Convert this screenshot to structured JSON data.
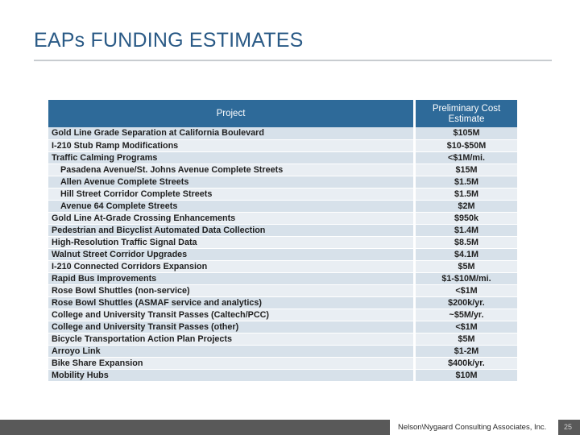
{
  "slide": {
    "title": "EAPs FUNDING ESTIMATES"
  },
  "table": {
    "headers": {
      "project": "Project",
      "cost": "Preliminary Cost Estimate"
    },
    "rows": [
      {
        "project": "Gold Line Grade Separation at California Boulevard",
        "cost": "$105M",
        "indent": false
      },
      {
        "project": "I-210 Stub Ramp Modifications",
        "cost": "$10-$50M",
        "indent": false
      },
      {
        "project": "Traffic Calming Programs",
        "cost": "<$1M/mi.",
        "indent": false
      },
      {
        "project": "Pasadena Avenue/St. Johns Avenue Complete Streets",
        "cost": "$15M",
        "indent": true
      },
      {
        "project": "Allen Avenue Complete Streets",
        "cost": "$1.5M",
        "indent": true
      },
      {
        "project": "Hill Street Corridor Complete Streets",
        "cost": "$1.5M",
        "indent": true
      },
      {
        "project": "Avenue 64 Complete Streets",
        "cost": "$2M",
        "indent": true
      },
      {
        "project": "Gold Line At-Grade Crossing Enhancements",
        "cost": "$950k",
        "indent": false
      },
      {
        "project": "Pedestrian and Bicyclist Automated Data Collection",
        "cost": "$1.4M",
        "indent": false
      },
      {
        "project": "High-Resolution Traffic Signal Data",
        "cost": "$8.5M",
        "indent": false
      },
      {
        "project": "Walnut Street Corridor Upgrades",
        "cost": "$4.1M",
        "indent": false
      },
      {
        "project": "I-210 Connected Corridors Expansion",
        "cost": "$5M",
        "indent": false
      },
      {
        "project": "Rapid Bus Improvements",
        "cost": "$1-$10M/mi.",
        "indent": false
      },
      {
        "project": "Rose Bowl Shuttles (non-service)",
        "cost": "<$1M",
        "indent": false
      },
      {
        "project": "Rose Bowl Shuttles (ASMAF service and analytics)",
        "cost": "$200k/yr.",
        "indent": false
      },
      {
        "project": "College and University Transit Passes (Caltech/PCC)",
        "cost": "~$5M/yr.",
        "indent": false
      },
      {
        "project": "College and University Transit Passes (other)",
        "cost": "<$1M",
        "indent": false
      },
      {
        "project": "Bicycle Transportation Action Plan Projects",
        "cost": "$5M",
        "indent": false
      },
      {
        "project": "Arroyo Link",
        "cost": "$1-2M",
        "indent": false
      },
      {
        "project": "Bike Share Expansion",
        "cost": "$400k/yr.",
        "indent": false
      },
      {
        "project": "Mobility Hubs",
        "cost": "$10M",
        "indent": false
      }
    ]
  },
  "footer": {
    "company": "Nelson\\Nygaard Consulting Associates, Inc.",
    "page_number": "25"
  }
}
